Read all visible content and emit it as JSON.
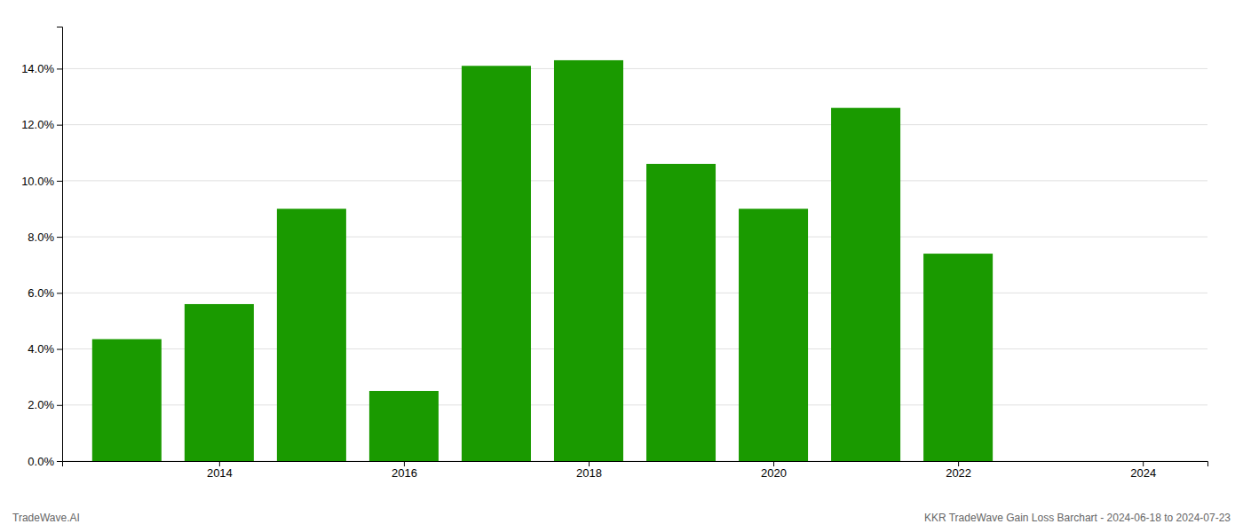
{
  "chart_data": {
    "type": "bar",
    "x": [
      2013,
      2014,
      2015,
      2016,
      2017,
      2018,
      2019,
      2020,
      2021,
      2022
    ],
    "values": [
      0.0435,
      0.056,
      0.09,
      0.025,
      0.141,
      0.143,
      0.106,
      0.09,
      0.126,
      0.074
    ],
    "color": "#1a9a00",
    "xlim": [
      2012.3,
      2024.7
    ],
    "xticks": [
      2014,
      2016,
      2018,
      2020,
      2022,
      2024
    ],
    "ylim": [
      0,
      0.155
    ],
    "yticks": [
      {
        "value": 0.0,
        "label": "0.0%"
      },
      {
        "value": 0.02,
        "label": "2.0%"
      },
      {
        "value": 0.04,
        "label": "4.0%"
      },
      {
        "value": 0.06,
        "label": "6.0%"
      },
      {
        "value": 0.08,
        "label": "8.0%"
      },
      {
        "value": 0.1,
        "label": "10.0%"
      },
      {
        "value": 0.12,
        "label": "12.0%"
      },
      {
        "value": 0.14,
        "label": "14.0%"
      }
    ],
    "grid": true,
    "annotations": [
      "TradeWave.AI",
      "KKR TradeWave Gain Loss Barchart - 2024-06-18 to 2024-07-23"
    ]
  }
}
